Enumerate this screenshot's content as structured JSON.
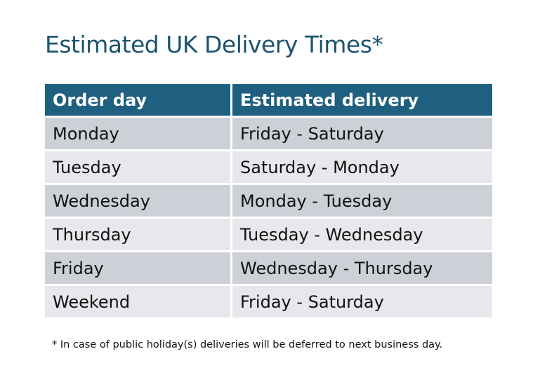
{
  "title": "Estimated UK Delivery Times*",
  "table": {
    "headers": [
      "Order day",
      "Estimated delivery"
    ],
    "rows": [
      [
        "Monday",
        "Friday - Saturday"
      ],
      [
        "Tuesday",
        "Saturday - Monday"
      ],
      [
        "Wednesday",
        "Monday - Tuesday"
      ],
      [
        "Thursday",
        "Tuesday - Wednesday"
      ],
      [
        "Friday",
        "Wednesday - Thursday"
      ],
      [
        "Weekend",
        "Friday - Saturday"
      ]
    ]
  },
  "footnote": "* In case of public holiday(s) deliveries will be deferred to next business day.",
  "colors": {
    "header": "#1f5f80",
    "title": "#1d5470",
    "row_dark": "#cdd1d7",
    "row_light": "#e6e8eb"
  }
}
